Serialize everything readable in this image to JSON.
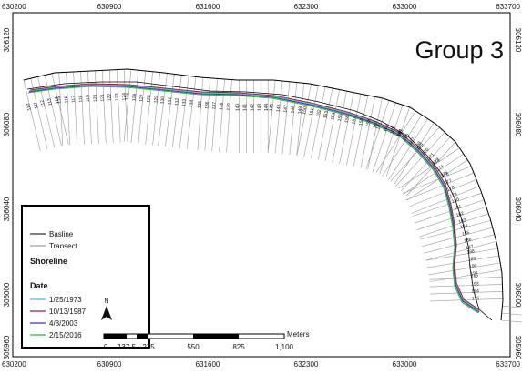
{
  "title": "Group 3",
  "x_ticks": [
    "630200",
    "630900",
    "631600",
    "632300",
    "633000",
    "633700"
  ],
  "y_ticks": [
    "306120",
    "306080",
    "306040",
    "306000",
    "305960"
  ],
  "legend": {
    "items": [
      {
        "label": "Basline",
        "color": "#000000"
      },
      {
        "label": "Transect",
        "color": "#888888"
      }
    ],
    "shoreline_heading": "Shoreline",
    "date_heading": "Date",
    "dates": [
      {
        "label": "1/25/1973",
        "color": "#5ab4d6"
      },
      {
        "label": "10/13/1987",
        "color": "#8b2a3a"
      },
      {
        "label": "4/8/2003",
        "color": "#3a3aa0"
      },
      {
        "label": "2/15/2016",
        "color": "#3cb043"
      }
    ]
  },
  "scale_bar": {
    "unit": "Meters",
    "labels": [
      "0",
      "137.5",
      "275",
      "550",
      "825",
      "1,100"
    ]
  },
  "transect_labels": [
    "110",
    "111",
    "112",
    "113",
    "114",
    "115",
    "116",
    "117",
    "118",
    "119",
    "120",
    "121",
    "122",
    "123",
    "124",
    "125",
    "126",
    "127",
    "128",
    "129",
    "130",
    "131",
    "132",
    "133",
    "134",
    "135",
    "136",
    "137",
    "138",
    "139",
    "140",
    "141",
    "142",
    "143",
    "144",
    "145",
    "146",
    "147",
    "148",
    "149",
    "150",
    "151",
    "152",
    "153",
    "154",
    "155",
    "156",
    "157",
    "158",
    "159",
    "160",
    "161",
    "162",
    "163",
    "164",
    "165",
    "166",
    "167",
    "168",
    "169",
    "170",
    "171",
    "172",
    "173",
    "174",
    "175",
    "176",
    "177",
    "178",
    "179",
    "180",
    "181",
    "182",
    "183",
    "184",
    "185",
    "186",
    "187",
    "188",
    "189",
    "190",
    "191",
    "192",
    "193",
    "194",
    "195",
    "196",
    "197",
    "198"
  ]
}
